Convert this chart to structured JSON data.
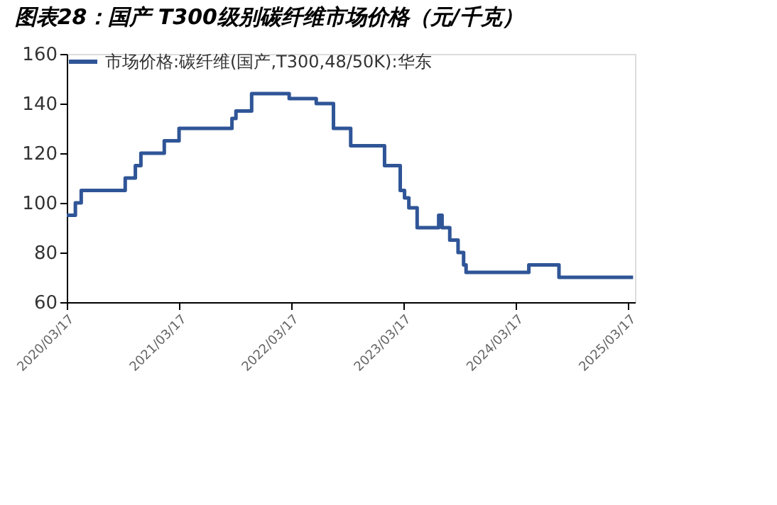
{
  "chart_data": {
    "type": "step",
    "title": "图表28：国产 T300级别碳纤维市场价格（元/千克）",
    "x": [
      "2020-03-17",
      "2020-04-14",
      "2020-05-03",
      "2020-09-23",
      "2020-10-26",
      "2020-11-13",
      "2021-01-28",
      "2021-03-17",
      "2021-09-05",
      "2021-09-18",
      "2021-11-08",
      "2022-03-10",
      "2022-06-06",
      "2022-08-01",
      "2022-09-26",
      "2023-01-14",
      "2023-03-06",
      "2023-03-20",
      "2023-04-03",
      "2023-04-30",
      "2023-07-09",
      "2023-07-20",
      "2023-08-14",
      "2023-09-10",
      "2023-09-28",
      "2023-10-06",
      "2024-04-27",
      "2024-08-03",
      "2025-04-01"
    ],
    "series": [
      {
        "name": "市场价格:碳纤维(国产,T300,48/50K):华东",
        "color": "#2f5597",
        "values": [
          95,
          100,
          105,
          110,
          115,
          120,
          125,
          130,
          134,
          137,
          144,
          142,
          140,
          130,
          123,
          115,
          105,
          102,
          98,
          90,
          95,
          90,
          85,
          80,
          75,
          72,
          75,
          70,
          70
        ]
      }
    ],
    "ylim": [
      60,
      160
    ],
    "yticks": [
      60,
      80,
      100,
      120,
      140,
      160
    ],
    "xlim": [
      "2020-03-17",
      "2025-04-07"
    ],
    "xticks": [
      {
        "value": "2020-03-17",
        "label": "2020/03/17"
      },
      {
        "value": "2021-03-17",
        "label": "2021/03/17"
      },
      {
        "value": "2022-03-17",
        "label": "2022/03/17"
      },
      {
        "value": "2023-03-17",
        "label": "2023/03/17"
      },
      {
        "value": "2024-03-17",
        "label": "2024/03/17"
      },
      {
        "value": "2025-03-17",
        "label": "2025/03/17"
      }
    ],
    "grid": false,
    "legend": "top",
    "marker": "none",
    "line_style": "solid"
  }
}
